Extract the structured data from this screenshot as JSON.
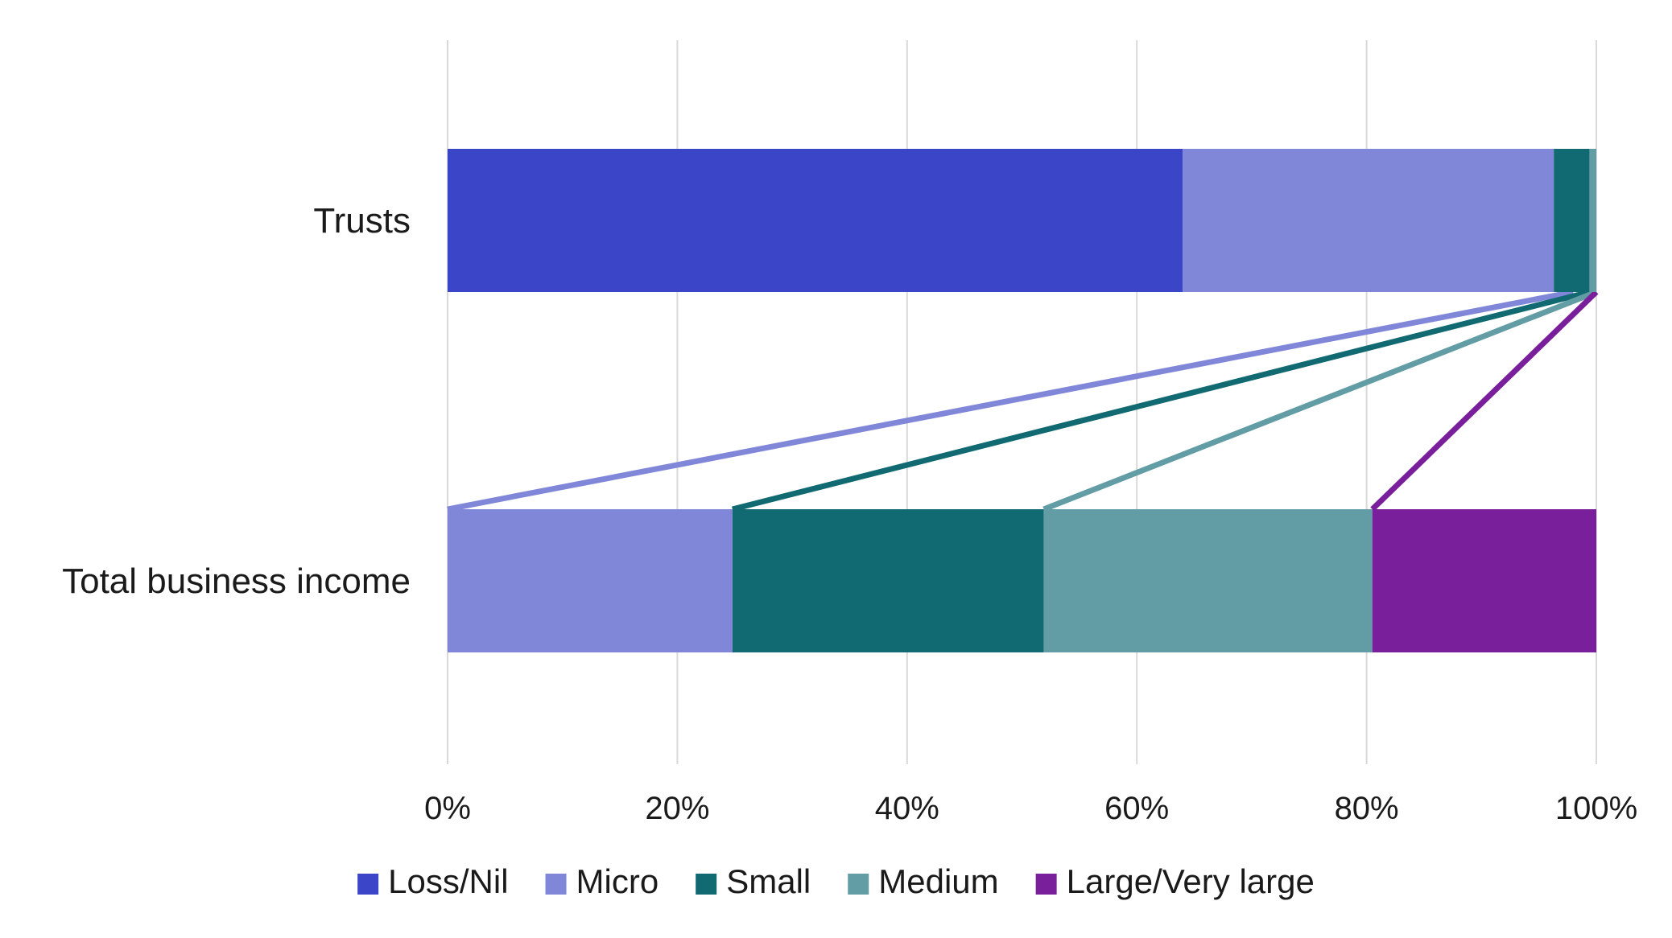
{
  "chart_data": {
    "type": "bar",
    "orientation": "horizontal",
    "stacked": "100%",
    "categories": [
      "Trusts",
      "Total business income"
    ],
    "series": [
      {
        "name": "Loss/Nil",
        "color": "#3b45c8",
        "values": [
          64,
          0
        ]
      },
      {
        "name": "Micro",
        "color": "#8087d8",
        "values": [
          32.3,
          24.8
        ]
      },
      {
        "name": "Small",
        "color": "#116a72",
        "values": [
          3.1,
          27.1
        ]
      },
      {
        "name": "Medium",
        "color": "#629ca4",
        "values": [
          0.6,
          28.6
        ]
      },
      {
        "name": "Large/Very large",
        "color": "#7a1f9b",
        "values": [
          0,
          19.5
        ]
      }
    ],
    "xlim": [
      0,
      100
    ],
    "x_ticks": [
      "0%",
      "20%",
      "40%",
      "60%",
      "80%",
      "100%"
    ],
    "grid": "vertical",
    "legend_position": "bottom",
    "connector_lines": true
  }
}
